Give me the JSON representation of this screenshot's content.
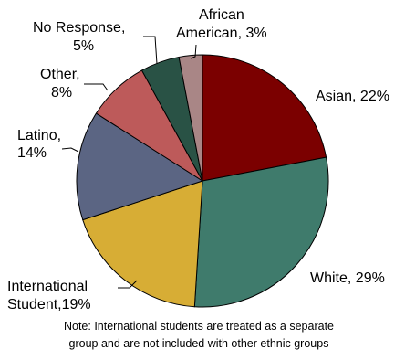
{
  "chart_data": {
    "type": "pie",
    "title": "",
    "slices": [
      {
        "label": "Asian",
        "value": 22,
        "color": "#7b0000"
      },
      {
        "label": "White",
        "value": 29,
        "color": "#3f7b6c"
      },
      {
        "label": "International Student",
        "value": 19,
        "color": "#d7ad35"
      },
      {
        "label": "Latino",
        "value": 14,
        "color": "#5b6583"
      },
      {
        "label": "Other",
        "value": 8,
        "color": "#bd5a5a"
      },
      {
        "label": "No Response",
        "value": 5,
        "color": "#295245"
      },
      {
        "label": "African American",
        "value": 3,
        "color": "#a98686"
      }
    ],
    "label_text": {
      "asian": "Asian, 22%",
      "white": "White, 29%",
      "international_1": "International",
      "international_2": "Student,19%",
      "latino_1": "Latino,",
      "latino_2": "14%",
      "other_1": "Other,",
      "other_2": "8%",
      "noresp_1": "No Response,",
      "noresp_2": "5%",
      "african_1": "African",
      "african_2": "American, 3%"
    },
    "note": [
      "Note: International students are treated as a separate",
      "group and are not included with other ethnic groups"
    ]
  }
}
